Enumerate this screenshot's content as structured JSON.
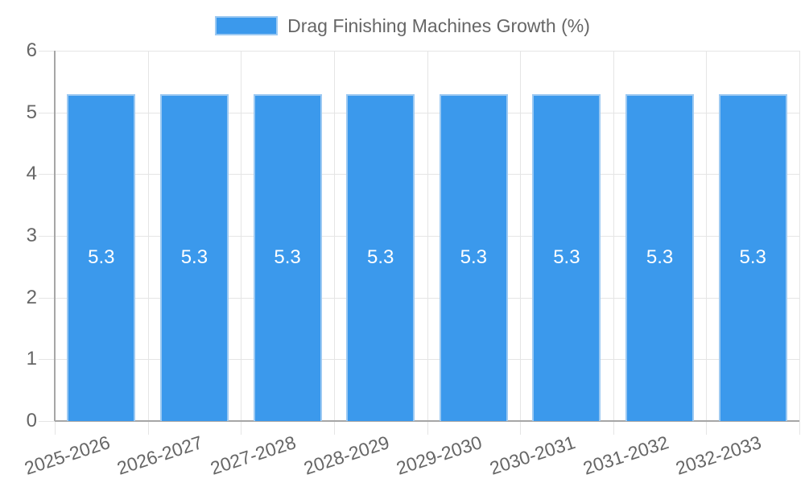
{
  "legend": {
    "label": "Drag Finishing Machines Growth (%)",
    "swatch_color": "#3B99EC"
  },
  "chart_data": {
    "type": "bar",
    "title": "Drag Finishing Machines Growth (%)",
    "categories": [
      "2025-2026",
      "2026-2027",
      "2027-2028",
      "2028-2029",
      "2029-2030",
      "2030-2031",
      "2031-2032",
      "2032-2033"
    ],
    "values": [
      5.3,
      5.3,
      5.3,
      5.3,
      5.3,
      5.3,
      5.3,
      5.3
    ],
    "bar_value_labels": [
      "5.3",
      "5.3",
      "5.3",
      "5.3",
      "5.3",
      "5.3",
      "5.3",
      "5.3"
    ],
    "xlabel": "",
    "ylabel": "",
    "ylim": [
      0,
      6
    ],
    "yticks": [
      0,
      1,
      2,
      3,
      4,
      5,
      6
    ],
    "grid": true,
    "legend_position": "top",
    "bar_color": "#3B99EC",
    "bar_border_color": "#9CC9F2",
    "bar_label_color": "#ffffff",
    "grid_color": "#E5E5E5",
    "axis_color": "#A6A6A6",
    "tick_label_color": "#666666"
  }
}
